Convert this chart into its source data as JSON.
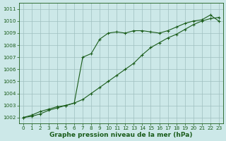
{
  "line1_x": [
    0,
    1,
    2,
    3,
    4,
    5,
    6,
    7,
    8,
    9,
    10,
    11,
    12,
    13,
    14,
    15,
    16,
    17,
    18,
    19,
    20,
    21,
    22,
    23
  ],
  "line1_y": [
    1002.0,
    1002.2,
    1002.5,
    1002.7,
    1002.9,
    1003.0,
    1003.2,
    1007.0,
    1007.3,
    1008.5,
    1009.0,
    1009.1,
    1009.0,
    1009.2,
    1009.2,
    1009.1,
    1009.0,
    1009.2,
    1009.5,
    1009.8,
    1010.0,
    1010.1,
    1010.5,
    1010.0
  ],
  "line2_x": [
    0,
    1,
    2,
    3,
    4,
    5,
    6,
    7,
    8,
    9,
    10,
    11,
    12,
    13,
    14,
    15,
    16,
    17,
    18,
    19,
    20,
    21,
    22,
    23
  ],
  "line2_y": [
    1002.0,
    1002.1,
    1002.3,
    1002.6,
    1002.8,
    1003.0,
    1003.2,
    1003.5,
    1004.0,
    1004.5,
    1005.0,
    1005.5,
    1006.0,
    1006.5,
    1007.2,
    1007.8,
    1008.2,
    1008.6,
    1008.9,
    1009.3,
    1009.7,
    1010.0,
    1010.2,
    1010.3
  ],
  "line_color": "#1a5c1a",
  "marker": "+",
  "marker_size": 3,
  "marker_lw": 0.8,
  "line_width": 0.8,
  "bg_color": "#cce8e8",
  "grid_color": "#9fbfbf",
  "xlabel": "Graphe pression niveau de la mer (hPa)",
  "xlabel_fontsize": 6.5,
  "ylabel_ticks": [
    1002,
    1003,
    1004,
    1005,
    1006,
    1007,
    1008,
    1009,
    1010,
    1011
  ],
  "xlim": [
    -0.5,
    23.5
  ],
  "ylim": [
    1001.5,
    1011.5
  ],
  "xticks": [
    0,
    1,
    2,
    3,
    4,
    5,
    6,
    7,
    8,
    9,
    10,
    11,
    12,
    13,
    14,
    15,
    16,
    17,
    18,
    19,
    20,
    21,
    22,
    23
  ],
  "tick_fontsize": 5.2,
  "figsize": [
    3.2,
    2.0
  ],
  "dpi": 100
}
